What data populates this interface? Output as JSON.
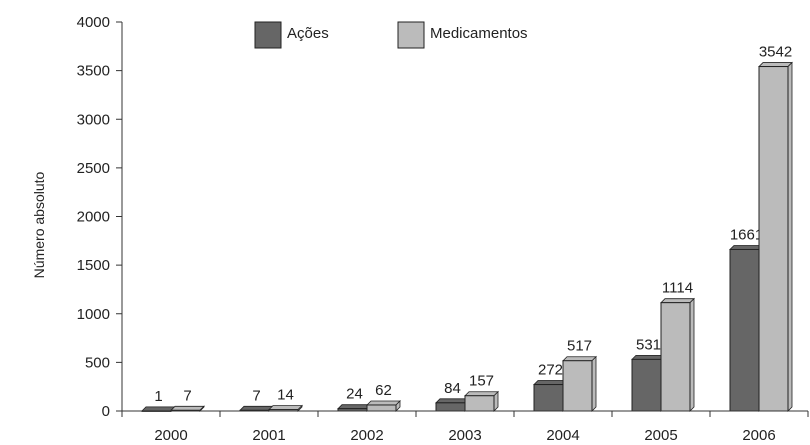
{
  "chart_data": {
    "type": "bar",
    "categories": [
      "2000",
      "2001",
      "2002",
      "2003",
      "2004",
      "2005",
      "2006"
    ],
    "series": [
      {
        "name": "Ações",
        "values": [
          1,
          7,
          24,
          84,
          272,
          531,
          1661
        ],
        "color": "#666666"
      },
      {
        "name": "Medicamentos",
        "values": [
          7,
          14,
          62,
          157,
          517,
          1114,
          3542
        ],
        "color": "#bbbbbb"
      }
    ],
    "display_values": [
      [
        1,
        7,
        24,
        84,
        272,
        531,
        1661
      ],
      [
        7,
        14,
        62,
        157,
        517,
        1114,
        3542
      ]
    ],
    "ylabel": "Número absoluto",
    "xlabel": "",
    "ylim": [
      0,
      4000
    ],
    "yticks": [
      0,
      500,
      1000,
      1500,
      2000,
      2500,
      3000,
      3500,
      4000
    ],
    "grid": false,
    "legend": "top-center"
  }
}
